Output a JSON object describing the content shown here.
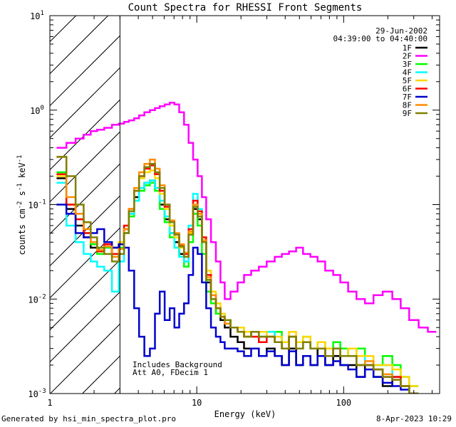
{
  "footer": {
    "generated_by": "Generated by hsi_min_spectra_plot.pro",
    "timestamp": "8-Apr-2023 10:29"
  },
  "chart_data": {
    "type": "line",
    "scale": {
      "x": "log",
      "y": "log"
    },
    "title": "Count Spectra for RHESSI Front Segments",
    "xlabel": "Energy (keV)",
    "ylabel_parts": [
      "counts cm",
      "-2",
      " s",
      "-1",
      " keV",
      "-1"
    ],
    "xlim": [
      1,
      450
    ],
    "ylim": [
      0.001,
      10
    ],
    "x_ticks": [
      {
        "value": 1,
        "label": "1"
      },
      {
        "value": 10,
        "label": "10"
      },
      {
        "value": 100,
        "label": "100"
      }
    ],
    "y_ticks": [
      {
        "value": 0.001,
        "base": "10",
        "exp": "-3"
      },
      {
        "value": 0.01,
        "base": "10",
        "exp": "-2"
      },
      {
        "value": 0.1,
        "base": "10",
        "exp": "-1"
      },
      {
        "value": 1,
        "base": "10",
        "exp": "0"
      },
      {
        "value": 10,
        "base": "10",
        "exp": "1"
      }
    ],
    "hatched_region": {
      "x": [
        1,
        3
      ]
    },
    "date_label": "29-Jun-2002",
    "time_range": "04:39:00 to 04:40:00",
    "annotations": [
      "Includes Background",
      "Att A0, FDecim 1"
    ],
    "legend": {
      "location": "top-right"
    },
    "series": [
      {
        "name": "1F",
        "color": "#000000",
        "x": [
          1.2,
          1.4,
          1.6,
          1.8,
          2.0,
          2.2,
          2.5,
          2.8,
          3.1,
          3.3,
          3.6,
          3.9,
          4.2,
          4.6,
          5.0,
          5.4,
          5.8,
          6.3,
          6.8,
          7.3,
          7.9,
          8.5,
          9.1,
          9.8,
          10.5,
          11.2,
          12.0,
          13.0,
          14.0,
          15.0,
          16.0,
          18.0,
          20.0,
          22.0,
          25.0,
          28.0,
          32.0,
          36.0,
          40.0,
          45.0,
          50.0,
          56.0,
          63.0,
          70.0,
          80.0,
          90.0,
          100.0,
          115.0,
          130.0,
          150.0,
          170.0,
          200.0,
          230.0,
          260.0,
          300.0
        ],
        "y": [
          0.19,
          0.09,
          0.06,
          0.045,
          0.035,
          0.032,
          0.04,
          0.035,
          0.04,
          0.055,
          0.08,
          0.12,
          0.15,
          0.17,
          0.18,
          0.15,
          0.1,
          0.07,
          0.05,
          0.04,
          0.03,
          0.025,
          0.05,
          0.09,
          0.07,
          0.04,
          0.015,
          0.01,
          0.007,
          0.006,
          0.005,
          0.004,
          0.0035,
          0.003,
          0.003,
          0.0025,
          0.003,
          0.0025,
          0.002,
          0.003,
          0.002,
          0.0025,
          0.002,
          0.003,
          0.002,
          0.0025,
          0.002,
          0.002,
          0.0015,
          0.002,
          0.0015,
          0.0012,
          0.0015,
          0.0012,
          0.001
        ]
      },
      {
        "name": "2F",
        "color": "#ff00ff",
        "x": [
          1.2,
          1.4,
          1.6,
          1.8,
          2.0,
          2.2,
          2.5,
          2.8,
          3.1,
          3.3,
          3.6,
          3.9,
          4.2,
          4.6,
          5.0,
          5.4,
          5.8,
          6.3,
          6.8,
          7.3,
          7.9,
          8.5,
          9.1,
          9.8,
          10.5,
          11.2,
          12.0,
          13.0,
          14.0,
          15.0,
          16.0,
          18.0,
          20.0,
          22.0,
          25.0,
          28.0,
          32.0,
          36.0,
          40.0,
          45.0,
          50.0,
          56.0,
          63.0,
          70.0,
          80.0,
          90.0,
          100.0,
          115.0,
          130.0,
          150.0,
          170.0,
          200.0,
          230.0,
          260.0,
          300.0,
          350.0,
          400.0
        ],
        "y": [
          0.4,
          0.45,
          0.5,
          0.55,
          0.6,
          0.62,
          0.65,
          0.7,
          0.72,
          0.75,
          0.78,
          0.82,
          0.88,
          0.95,
          1.0,
          1.05,
          1.1,
          1.15,
          1.2,
          1.15,
          0.95,
          0.7,
          0.45,
          0.3,
          0.2,
          0.12,
          0.07,
          0.04,
          0.025,
          0.015,
          0.01,
          0.012,
          0.015,
          0.018,
          0.02,
          0.022,
          0.025,
          0.028,
          0.03,
          0.032,
          0.035,
          0.03,
          0.028,
          0.025,
          0.02,
          0.018,
          0.015,
          0.012,
          0.01,
          0.009,
          0.011,
          0.012,
          0.01,
          0.008,
          0.006,
          0.005,
          0.0045
        ]
      },
      {
        "name": "3F",
        "color": "#00ff00",
        "x": [
          1.2,
          1.4,
          1.6,
          1.8,
          2.0,
          2.2,
          2.5,
          2.8,
          3.1,
          3.3,
          3.6,
          3.9,
          4.2,
          4.6,
          5.0,
          5.4,
          5.8,
          6.3,
          6.8,
          7.3,
          7.9,
          8.5,
          9.1,
          9.8,
          10.5,
          11.2,
          12.0,
          13.0,
          14.0,
          15.0,
          16.0,
          18.0,
          20.0,
          22.0,
          25.0,
          28.0,
          32.0,
          36.0,
          40.0,
          45.0,
          50.0,
          56.0,
          63.0,
          70.0,
          80.0,
          90.0,
          100.0,
          115.0,
          130.0,
          150.0,
          170.0,
          200.0,
          230.0,
          260.0,
          300.0
        ],
        "y": [
          0.22,
          0.1,
          0.07,
          0.05,
          0.038,
          0.03,
          0.035,
          0.03,
          0.035,
          0.05,
          0.075,
          0.11,
          0.14,
          0.16,
          0.17,
          0.14,
          0.09,
          0.065,
          0.045,
          0.035,
          0.028,
          0.022,
          0.04,
          0.08,
          0.06,
          0.03,
          0.012,
          0.009,
          0.007,
          0.0065,
          0.006,
          0.005,
          0.0045,
          0.004,
          0.0045,
          0.004,
          0.004,
          0.0045,
          0.0035,
          0.004,
          0.003,
          0.004,
          0.003,
          0.0035,
          0.003,
          0.0035,
          0.003,
          0.0025,
          0.003,
          0.0025,
          0.002,
          0.0025,
          0.002,
          0.0015,
          0.0012
        ]
      },
      {
        "name": "4F",
        "color": "#00ffff",
        "x": [
          1.2,
          1.4,
          1.6,
          1.8,
          2.0,
          2.2,
          2.5,
          2.8,
          3.1,
          3.3,
          3.6,
          3.9,
          4.2,
          4.6,
          5.0,
          5.4,
          5.8,
          6.3,
          6.8,
          7.3,
          7.9,
          8.5,
          9.1,
          9.8,
          10.5,
          11.2,
          12.0,
          13.0,
          14.0,
          15.0,
          16.0,
          18.0,
          20.0,
          22.0,
          25.0,
          28.0,
          32.0,
          36.0,
          40.0,
          45.0,
          50.0,
          56.0,
          63.0,
          70.0,
          80.0,
          90.0,
          100.0,
          115.0,
          130.0,
          150.0,
          170.0,
          200.0,
          230.0,
          260.0,
          300.0
        ],
        "y": [
          0.17,
          0.06,
          0.04,
          0.03,
          0.025,
          0.022,
          0.02,
          0.012,
          0.025,
          0.05,
          0.08,
          0.11,
          0.15,
          0.17,
          0.18,
          0.15,
          0.11,
          0.075,
          0.05,
          0.035,
          0.028,
          0.025,
          0.06,
          0.13,
          0.09,
          0.04,
          0.018,
          0.01,
          0.008,
          0.007,
          0.006,
          0.005,
          0.005,
          0.0045,
          0.004,
          0.004,
          0.0045,
          0.004,
          0.0035,
          0.004,
          0.003,
          0.0035,
          0.003,
          0.003,
          0.0025,
          0.003,
          0.0025,
          0.0025,
          0.002,
          0.0025,
          0.002,
          0.002,
          0.0015,
          0.0015,
          0.001
        ]
      },
      {
        "name": "5F",
        "color": "#ffd700",
        "x": [
          1.2,
          1.4,
          1.6,
          1.8,
          2.0,
          2.2,
          2.5,
          2.8,
          3.1,
          3.3,
          3.6,
          3.9,
          4.2,
          4.6,
          5.0,
          5.4,
          5.8,
          6.3,
          6.8,
          7.3,
          7.9,
          8.5,
          9.1,
          9.8,
          10.5,
          11.2,
          12.0,
          13.0,
          14.0,
          15.0,
          16.0,
          18.0,
          20.0,
          22.0,
          25.0,
          28.0,
          32.0,
          36.0,
          40.0,
          45.0,
          50.0,
          56.0,
          63.0,
          70.0,
          80.0,
          90.0,
          100.0,
          115.0,
          130.0,
          150.0,
          170.0,
          200.0,
          230.0,
          260.0,
          300.0
        ],
        "y": [
          0.2,
          0.1,
          0.07,
          0.05,
          0.04,
          0.035,
          0.04,
          0.03,
          0.04,
          0.06,
          0.09,
          0.14,
          0.19,
          0.22,
          0.23,
          0.19,
          0.13,
          0.09,
          0.06,
          0.045,
          0.035,
          0.03,
          0.05,
          0.1,
          0.08,
          0.045,
          0.02,
          0.012,
          0.009,
          0.007,
          0.006,
          0.005,
          0.005,
          0.0045,
          0.004,
          0.0045,
          0.004,
          0.004,
          0.0035,
          0.0045,
          0.0035,
          0.004,
          0.003,
          0.0035,
          0.003,
          0.003,
          0.0025,
          0.003,
          0.0025,
          0.0025,
          0.002,
          0.002,
          0.0018,
          0.0015,
          0.0012
        ]
      },
      {
        "name": "6F",
        "color": "#ff0000",
        "x": [
          1.2,
          1.4,
          1.6,
          1.8,
          2.0,
          2.2,
          2.5,
          2.8,
          3.1,
          3.3,
          3.6,
          3.9,
          4.2,
          4.6,
          5.0,
          5.4,
          5.8,
          6.3,
          6.8,
          7.3,
          7.9,
          8.5,
          9.1,
          9.8,
          10.5,
          11.2,
          12.0,
          13.0,
          14.0,
          15.0,
          16.0,
          18.0,
          20.0,
          22.0,
          25.0,
          28.0,
          32.0,
          36.0,
          40.0,
          45.0,
          50.0,
          56.0,
          63.0,
          70.0,
          80.0,
          90.0,
          100.0,
          115.0,
          130.0,
          150.0,
          170.0,
          200.0,
          230.0,
          260.0,
          300.0
        ],
        "y": [
          0.21,
          0.1,
          0.07,
          0.05,
          0.04,
          0.032,
          0.038,
          0.03,
          0.038,
          0.06,
          0.09,
          0.14,
          0.2,
          0.24,
          0.26,
          0.21,
          0.14,
          0.095,
          0.065,
          0.048,
          0.037,
          0.03,
          0.055,
          0.11,
          0.085,
          0.045,
          0.018,
          0.011,
          0.008,
          0.0065,
          0.006,
          0.005,
          0.0045,
          0.004,
          0.004,
          0.0035,
          0.004,
          0.0035,
          0.003,
          0.004,
          0.003,
          0.0035,
          0.003,
          0.003,
          0.0025,
          0.003,
          0.0025,
          0.0025,
          0.002,
          0.002,
          0.0018,
          0.0015,
          0.0015,
          0.0012,
          0.001
        ]
      },
      {
        "name": "7F",
        "color": "#0000cd",
        "x": [
          1.2,
          1.4,
          1.6,
          1.8,
          2.0,
          2.2,
          2.5,
          2.8,
          3.1,
          3.3,
          3.6,
          3.9,
          4.2,
          4.6,
          5.0,
          5.4,
          5.8,
          6.3,
          6.8,
          7.3,
          7.9,
          8.5,
          9.1,
          9.8,
          10.5,
          11.2,
          12.0,
          13.0,
          14.0,
          15.0,
          16.0,
          18.0,
          20.0,
          22.0,
          25.0,
          28.0,
          32.0,
          36.0,
          40.0,
          45.0,
          50.0,
          56.0,
          63.0,
          70.0,
          80.0,
          90.0,
          100.0,
          115.0,
          130.0,
          150.0,
          170.0,
          200.0,
          230.0,
          260.0,
          300.0
        ],
        "y": [
          0.1,
          0.08,
          0.05,
          0.045,
          0.05,
          0.055,
          0.04,
          0.035,
          0.038,
          0.035,
          0.02,
          0.008,
          0.004,
          0.0025,
          0.003,
          0.007,
          0.012,
          0.006,
          0.008,
          0.005,
          0.007,
          0.009,
          0.018,
          0.035,
          0.03,
          0.015,
          0.008,
          0.005,
          0.004,
          0.0035,
          0.003,
          0.003,
          0.0028,
          0.0025,
          0.003,
          0.0025,
          0.0028,
          0.0025,
          0.002,
          0.0028,
          0.002,
          0.0025,
          0.002,
          0.0025,
          0.002,
          0.0022,
          0.002,
          0.0018,
          0.0015,
          0.0018,
          0.0015,
          0.0013,
          0.0012,
          0.0011,
          0.001
        ]
      },
      {
        "name": "8F",
        "color": "#ff8c00",
        "x": [
          1.2,
          1.4,
          1.6,
          1.8,
          2.0,
          2.2,
          2.5,
          2.8,
          3.1,
          3.3,
          3.6,
          3.9,
          4.2,
          4.6,
          5.0,
          5.4,
          5.8,
          6.3,
          6.8,
          7.3,
          7.9,
          8.5,
          9.1,
          9.8,
          10.5,
          11.2,
          12.0,
          13.0,
          14.0,
          15.0,
          16.0,
          18.0,
          20.0,
          22.0,
          25.0,
          28.0,
          32.0,
          36.0,
          40.0,
          45.0,
          50.0,
          56.0,
          63.0,
          70.0,
          80.0,
          90.0,
          100.0,
          115.0,
          130.0,
          150.0,
          170.0,
          200.0,
          230.0,
          260.0,
          300.0
        ],
        "y": [
          0.32,
          0.12,
          0.08,
          0.055,
          0.04,
          0.033,
          0.036,
          0.028,
          0.034,
          0.055,
          0.09,
          0.15,
          0.22,
          0.27,
          0.3,
          0.24,
          0.16,
          0.1,
          0.068,
          0.05,
          0.038,
          0.031,
          0.052,
          0.1,
          0.08,
          0.042,
          0.017,
          0.011,
          0.008,
          0.0065,
          0.0055,
          0.005,
          0.0045,
          0.004,
          0.0045,
          0.004,
          0.004,
          0.0035,
          0.003,
          0.004,
          0.003,
          0.0035,
          0.003,
          0.003,
          0.0025,
          0.003,
          0.0025,
          0.0025,
          0.002,
          0.0022,
          0.0018,
          0.0016,
          0.0014,
          0.0012,
          0.001
        ]
      },
      {
        "name": "9F",
        "color": "#808000",
        "x": [
          1.2,
          1.4,
          1.6,
          1.8,
          2.0,
          2.2,
          2.5,
          2.8,
          3.1,
          3.3,
          3.6,
          3.9,
          4.2,
          4.6,
          5.0,
          5.4,
          5.8,
          6.3,
          6.8,
          7.3,
          7.9,
          8.5,
          9.1,
          9.8,
          10.5,
          11.2,
          12.0,
          13.0,
          14.0,
          15.0,
          16.0,
          18.0,
          20.0,
          22.0,
          25.0,
          28.0,
          32.0,
          36.0,
          40.0,
          45.0,
          50.0,
          56.0,
          63.0,
          70.0,
          80.0,
          90.0,
          100.0,
          115.0,
          130.0,
          150.0,
          170.0,
          200.0,
          230.0,
          260.0,
          300.0
        ],
        "y": [
          0.32,
          0.2,
          0.1,
          0.065,
          0.045,
          0.035,
          0.03,
          0.025,
          0.03,
          0.05,
          0.085,
          0.14,
          0.2,
          0.25,
          0.27,
          0.22,
          0.15,
          0.1,
          0.065,
          0.048,
          0.036,
          0.028,
          0.048,
          0.095,
          0.075,
          0.04,
          0.016,
          0.01,
          0.008,
          0.0065,
          0.006,
          0.005,
          0.0045,
          0.004,
          0.0045,
          0.004,
          0.004,
          0.0035,
          0.003,
          0.004,
          0.003,
          0.0035,
          0.003,
          0.003,
          0.0025,
          0.003,
          0.0025,
          0.0025,
          0.002,
          0.002,
          0.0018,
          0.0015,
          0.0014,
          0.0012,
          0.001
        ]
      }
    ]
  }
}
